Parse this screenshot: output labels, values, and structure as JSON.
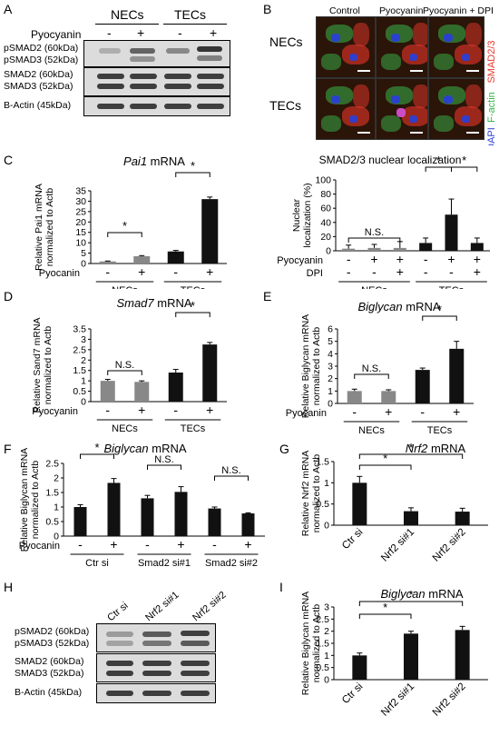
{
  "panel_letters": [
    "A",
    "B",
    "C",
    "D",
    "E",
    "F",
    "G",
    "H",
    "I"
  ],
  "blot_A": {
    "groups": [
      "NECs",
      "TECs"
    ],
    "treatment_label": "Pyocyanin",
    "lanes": [
      "-",
      "+",
      "-",
      "+"
    ],
    "rows": [
      {
        "lines": [
          "pSMAD2 (60kDa)",
          "pSMAD3 (52kDa)"
        ]
      },
      {
        "lines": [
          "SMAD2 (60kDa)",
          "SMAD3 (52kDa)"
        ]
      },
      {
        "lines": [
          "B-Actin (45kDa)"
        ]
      }
    ]
  },
  "micro_B": {
    "columns": [
      "Control",
      "Pyocyanin",
      "Pyocyanin + DPI"
    ],
    "rows": [
      "NECs",
      "TECs"
    ],
    "stain_labels": [
      "SMAD2/3",
      "F-actin",
      "DAPI"
    ],
    "colors": {
      "smad": "#e8362a",
      "factin": "#39b54a",
      "dapi": "#2b3fd6"
    }
  },
  "chart_data": [
    {
      "id": "C_left",
      "type": "bar",
      "title": "Pai1 mRNA",
      "ylabel": "Relative Pai1 mRNA normalized to Actb",
      "ylim": [
        0,
        35
      ],
      "yticks": [
        0,
        5,
        10,
        15,
        20,
        25,
        30,
        35
      ],
      "categories": [
        "NECs -",
        "NECs +",
        "TECs -",
        "TECs +"
      ],
      "values": [
        1,
        3.5,
        5.8,
        31
      ],
      "errors": [
        0.2,
        0.3,
        0.5,
        1.0
      ],
      "colors": [
        "#888888",
        "#888888",
        "#111111",
        "#111111"
      ],
      "treatment_label": "Pyocanin",
      "treatment_marks": [
        "-",
        "+",
        "-",
        "+"
      ],
      "groups": [
        "NECs",
        "TECs"
      ],
      "significance": [
        {
          "pair": [
            0,
            1
          ],
          "label": "*"
        },
        {
          "pair": [
            2,
            3
          ],
          "label": "*"
        }
      ]
    },
    {
      "id": "C_right",
      "type": "bar",
      "title": "SMAD2/3 nuclear localization",
      "ylabel": "Nuclear localization (%)",
      "ylim": [
        0,
        100
      ],
      "yticks": [
        0,
        20,
        40,
        60,
        80,
        100
      ],
      "categories": [
        "NECs Ctrl",
        "NECs Pyo",
        "NECs Pyo+DPI",
        "TECs Ctrl",
        "TECs Pyo",
        "TECs Pyo+DPI"
      ],
      "values": [
        3,
        4,
        4,
        11,
        51,
        11
      ],
      "errors": [
        5,
        5,
        9,
        7,
        22,
        7
      ],
      "colors": [
        "#888888",
        "#888888",
        "#888888",
        "#111111",
        "#111111",
        "#111111"
      ],
      "treatment_rows": [
        {
          "label": "Pyocyanin",
          "marks": [
            "-",
            "+",
            "+",
            "-",
            "+",
            "+"
          ]
        },
        {
          "label": "DPI",
          "marks": [
            "-",
            "-",
            "+",
            "-",
            "-",
            "+"
          ]
        }
      ],
      "groups": [
        "NECs",
        "TECs"
      ],
      "significance": [
        {
          "pair": [
            0,
            2
          ],
          "label": "N.S."
        },
        {
          "pair": [
            3,
            4
          ],
          "label": "*"
        },
        {
          "pair": [
            4,
            5
          ],
          "label": "*"
        }
      ]
    },
    {
      "id": "D",
      "type": "bar",
      "title": "Smad7 mRNA",
      "ylabel": "Relative Sand7 mRNA normalized to Actb",
      "ylim": [
        0,
        3.5
      ],
      "yticks": [
        0,
        0.5,
        1,
        1.5,
        2,
        2.5,
        3,
        3.5
      ],
      "categories": [
        "NECs -",
        "NECs +",
        "TECs -",
        "TECs +"
      ],
      "values": [
        1.0,
        0.95,
        1.4,
        2.75
      ],
      "errors": [
        0.07,
        0.05,
        0.15,
        0.1
      ],
      "colors": [
        "#888888",
        "#888888",
        "#111111",
        "#111111"
      ],
      "treatment_label": "Pyocyanin",
      "treatment_marks": [
        "-",
        "+",
        "-",
        "+"
      ],
      "groups": [
        "NECs",
        "TECs"
      ],
      "significance": [
        {
          "pair": [
            0,
            1
          ],
          "label": "N.S."
        },
        {
          "pair": [
            2,
            3
          ],
          "label": "*"
        }
      ]
    },
    {
      "id": "E",
      "type": "bar",
      "title": "Biglycan mRNA",
      "ylabel": "Relative Biglycan mRNA normalized to Actb",
      "ylim": [
        0,
        6
      ],
      "yticks": [
        0,
        1,
        2,
        3,
        4,
        5,
        6
      ],
      "categories": [
        "NECs -",
        "NECs +",
        "TECs -",
        "TECs +"
      ],
      "values": [
        1.0,
        1.0,
        2.7,
        4.4
      ],
      "errors": [
        0.15,
        0.1,
        0.15,
        0.6
      ],
      "colors": [
        "#888888",
        "#888888",
        "#111111",
        "#111111"
      ],
      "treatment_label": "Pyocanin",
      "treatment_marks": [
        "-",
        "+",
        "-",
        "+"
      ],
      "groups": [
        "NECs",
        "TECs"
      ],
      "significance": [
        {
          "pair": [
            0,
            1
          ],
          "label": "N.S."
        },
        {
          "pair": [
            2,
            3
          ],
          "label": "*"
        }
      ]
    },
    {
      "id": "F",
      "type": "bar",
      "title": "Biglycan mRNA",
      "ylabel": "Relative Biglycan mRNA normalized to Actb",
      "ylim": [
        0,
        2.5
      ],
      "yticks": [
        0,
        0.5,
        1,
        1.5,
        2,
        2.5
      ],
      "categories": [
        "Ctr si -",
        "Ctr si +",
        "Smad2 si#1 -",
        "Smad2 si#1 +",
        "Smad2 si#2 -",
        "Smad2 si#2 +"
      ],
      "values": [
        1.0,
        1.83,
        1.3,
        1.52,
        0.95,
        0.78
      ],
      "errors": [
        0.08,
        0.15,
        0.1,
        0.18,
        0.05,
        0.02
      ],
      "colors": [
        "#111111",
        "#111111",
        "#111111",
        "#111111",
        "#111111",
        "#111111"
      ],
      "treatment_label": "Pyocanin",
      "treatment_marks": [
        "-",
        "+",
        "-",
        "+",
        "-",
        "+"
      ],
      "groups": [
        "Ctr si",
        "Smad2 si#1",
        "Smad2 si#2"
      ],
      "significance": [
        {
          "pair": [
            0,
            1
          ],
          "label": "*"
        },
        {
          "pair": [
            2,
            3
          ],
          "label": "N.S."
        },
        {
          "pair": [
            4,
            5
          ],
          "label": "N.S."
        }
      ]
    },
    {
      "id": "G",
      "type": "bar",
      "title": "Nrf2 mRNA",
      "ylabel": "Relative Nrf2 mRNA normalized to Actb",
      "ylim": [
        0,
        1.5
      ],
      "yticks": [
        0,
        0.5,
        1,
        1.5
      ],
      "categories": [
        "Ctr si",
        "Nrf2 si#1",
        "Nrf2 si#2"
      ],
      "values": [
        1.0,
        0.33,
        0.32
      ],
      "errors": [
        0.15,
        0.08,
        0.08
      ],
      "colors": [
        "#111111",
        "#111111",
        "#111111"
      ],
      "significance": [
        {
          "pair": [
            0,
            1
          ],
          "label": "*"
        },
        {
          "pair": [
            0,
            2
          ],
          "label": "*"
        }
      ]
    },
    {
      "id": "I",
      "type": "bar",
      "title": "Biglycan mRNA",
      "ylabel": "Relative Biglycan mRNA normalized to Actb",
      "ylim": [
        0,
        3
      ],
      "yticks": [
        0,
        0.5,
        1,
        1.5,
        2,
        2.5,
        3
      ],
      "categories": [
        "Ctr si",
        "Nrf2 si#1",
        "Nrf2 si#2"
      ],
      "values": [
        1.0,
        1.9,
        2.05
      ],
      "errors": [
        0.1,
        0.1,
        0.15
      ],
      "colors": [
        "#111111",
        "#111111",
        "#111111"
      ],
      "significance": [
        {
          "pair": [
            0,
            1
          ],
          "label": "*"
        },
        {
          "pair": [
            0,
            2
          ],
          "label": "*"
        }
      ]
    }
  ],
  "blot_H": {
    "lanes": [
      "Ctr si",
      "Nrf2 si#1",
      "Nrf2 si#2"
    ],
    "rows": [
      {
        "lines": [
          "pSMAD2 (60kDa)",
          "pSMAD3 (52kDa)"
        ]
      },
      {
        "lines": [
          "SMAD2 (60kDa)",
          "SMAD3 (52kDa)"
        ]
      },
      {
        "lines": [
          "B-Actin (45kDa)"
        ]
      }
    ]
  }
}
